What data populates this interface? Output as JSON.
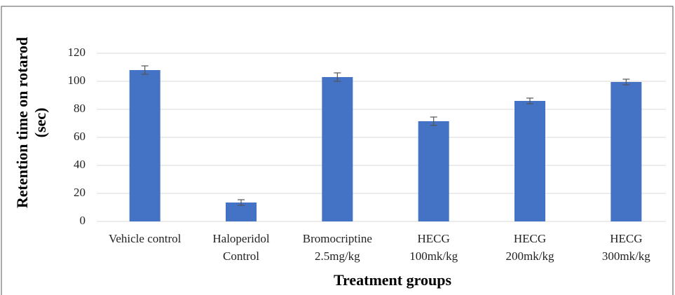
{
  "chart_data": {
    "type": "bar",
    "ylabel": [
      "Retention time on rotarod",
      "(sec)"
    ],
    "xlabel": "Treatment groups",
    "categories": [
      [
        "Vehicle control"
      ],
      [
        "Haloperidol",
        "Control"
      ],
      [
        "Bromocriptine",
        "2.5mg/kg"
      ],
      [
        "HECG",
        "100mk/kg"
      ],
      [
        "HECG",
        "200mk/kg"
      ],
      [
        "HECG",
        "300mk/kg"
      ]
    ],
    "values": [
      108,
      13.5,
      103,
      71.5,
      86,
      99.5
    ],
    "errors": [
      3,
      2,
      3,
      3,
      2,
      2
    ],
    "color": "#4472c4",
    "ylim": [
      0,
      120
    ],
    "yticks": [
      0,
      20,
      40,
      60,
      80,
      100,
      120
    ],
    "grid": true
  }
}
